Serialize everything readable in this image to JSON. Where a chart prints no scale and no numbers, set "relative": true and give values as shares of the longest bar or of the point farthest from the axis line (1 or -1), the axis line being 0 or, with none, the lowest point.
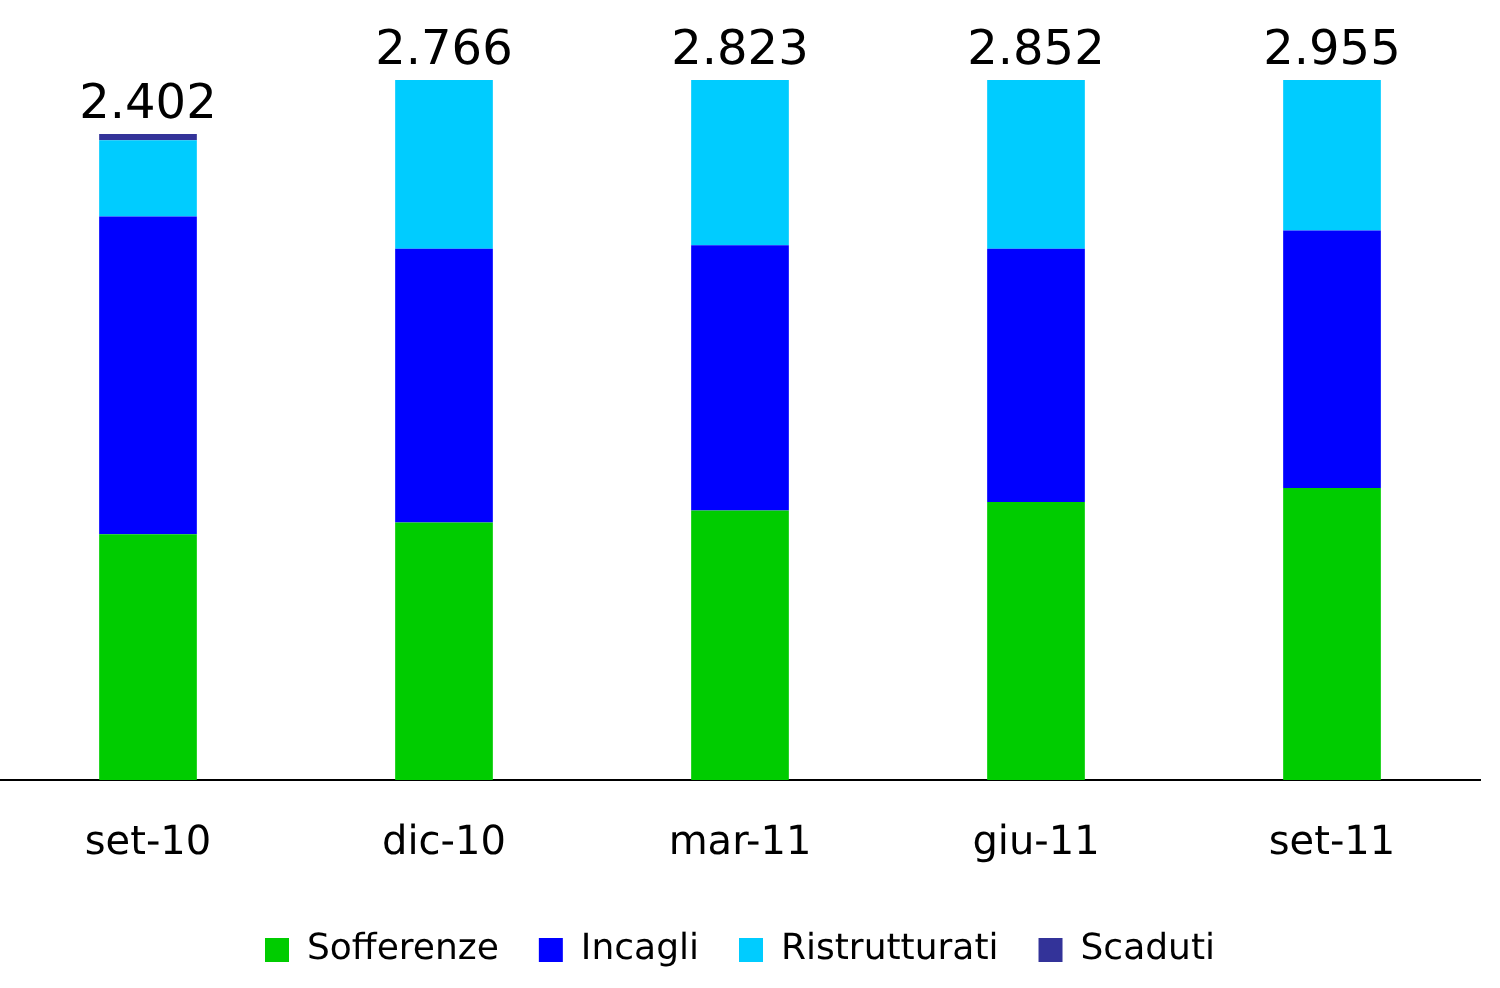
{
  "chart_data": {
    "type": "bar",
    "stacked": true,
    "relative": true,
    "categories": [
      "set-10",
      "dic-10",
      "mar-11",
      "giu-11",
      "set-11"
    ],
    "series": [
      {
        "name": "Sofferenze",
        "color": "#00cc00",
        "values": [
          0.351,
          0.368,
          0.385,
          0.397,
          0.417
        ]
      },
      {
        "name": "Incagli",
        "color": "#0000ff",
        "values": [
          0.454,
          0.391,
          0.379,
          0.362,
          0.368
        ]
      },
      {
        "name": "Ristrutturati",
        "color": "#00ccff",
        "values": [
          0.109,
          0.241,
          0.236,
          0.241,
          0.215
        ]
      },
      {
        "name": "Scaduti",
        "color": "#333399",
        "values": [
          0.009,
          null,
          null,
          null,
          null
        ]
      }
    ],
    "annotations": [
      {
        "text": "2.402",
        "x": "set-10",
        "y": 0.923
      },
      {
        "text": "2.766",
        "x": "dic-10",
        "y": 1
      },
      {
        "text": "2.823",
        "x": "mar-11",
        "y": 1
      },
      {
        "text": "2.852",
        "x": "giu-11",
        "y": 1
      },
      {
        "text": "2.955",
        "x": "set-11",
        "y": 1
      }
    ],
    "legend": "bottom",
    "grid": false
  }
}
